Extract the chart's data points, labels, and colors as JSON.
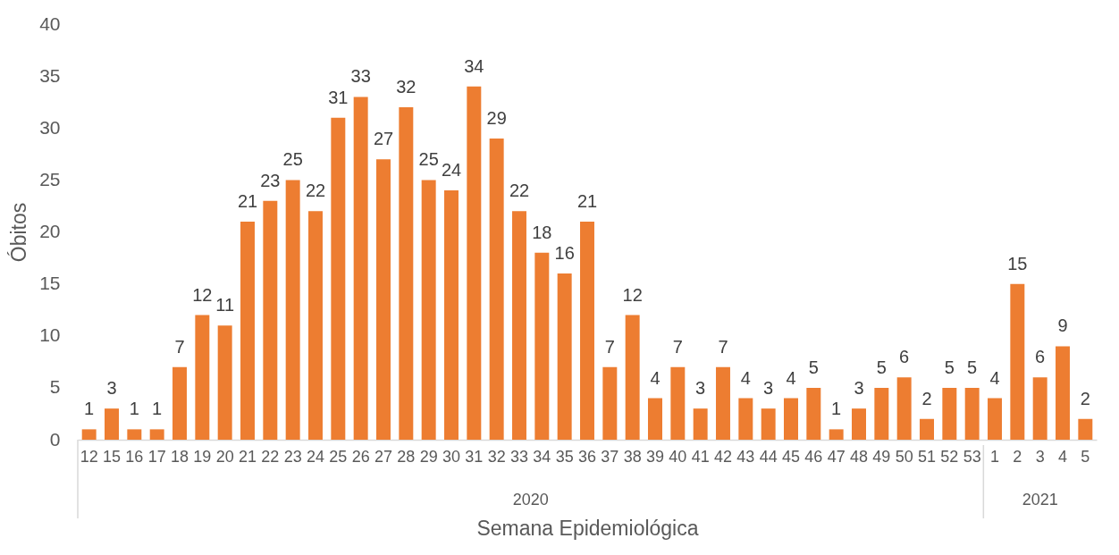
{
  "chart_data": {
    "type": "bar",
    "xlabel": "Semana Epidemiológica",
    "ylabel": "Óbitos",
    "categories": [
      "12",
      "15",
      "16",
      "17",
      "18",
      "19",
      "20",
      "21",
      "22",
      "23",
      "24",
      "25",
      "26",
      "27",
      "28",
      "29",
      "30",
      "31",
      "32",
      "33",
      "34",
      "35",
      "36",
      "37",
      "38",
      "39",
      "40",
      "41",
      "42",
      "43",
      "44",
      "45",
      "46",
      "47",
      "48",
      "49",
      "50",
      "51",
      "52",
      "53",
      "1",
      "2",
      "3",
      "4",
      "5"
    ],
    "values": [
      1,
      3,
      1,
      1,
      7,
      12,
      11,
      21,
      23,
      25,
      22,
      31,
      33,
      27,
      32,
      25,
      24,
      34,
      29,
      22,
      18,
      16,
      21,
      7,
      12,
      4,
      7,
      3,
      7,
      4,
      3,
      4,
      5,
      1,
      3,
      5,
      6,
      2,
      5,
      5,
      4,
      15,
      6,
      9,
      2
    ],
    "color": "#ed7d31",
    "ylim": [
      0,
      40
    ],
    "yticks": [
      0,
      5,
      10,
      15,
      20,
      25,
      30,
      35,
      40
    ],
    "grid": false,
    "data_labels": true,
    "annotations": [
      "2020",
      "2021"
    ]
  }
}
